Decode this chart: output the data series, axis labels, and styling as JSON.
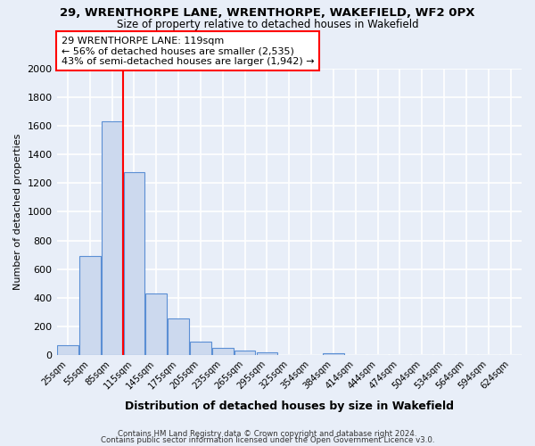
{
  "title": "29, WRENTHORPE LANE, WRENTHORPE, WAKEFIELD, WF2 0PX",
  "subtitle": "Size of property relative to detached houses in Wakefield",
  "xlabel": "Distribution of detached houses by size in Wakefield",
  "ylabel": "Number of detached properties",
  "bar_labels": [
    "25sqm",
    "55sqm",
    "85sqm",
    "115sqm",
    "145sqm",
    "175sqm",
    "205sqm",
    "235sqm",
    "265sqm",
    "295sqm",
    "325sqm",
    "354sqm",
    "384sqm",
    "414sqm",
    "444sqm",
    "474sqm",
    "504sqm",
    "534sqm",
    "564sqm",
    "594sqm",
    "624sqm"
  ],
  "bar_values": [
    65,
    690,
    1630,
    1280,
    430,
    255,
    90,
    50,
    30,
    20,
    0,
    0,
    15,
    0,
    0,
    0,
    0,
    0,
    0,
    0,
    0
  ],
  "bar_color": "#ccd9ee",
  "bar_edge_color": "#5b8fd4",
  "vline_color": "red",
  "annotation_title": "29 WRENTHORPE LANE: 119sqm",
  "annotation_line1": "← 56% of detached houses are smaller (2,535)",
  "annotation_line2": "43% of semi-detached houses are larger (1,942) →",
  "annotation_box_color": "white",
  "annotation_box_edge": "red",
  "ylim": [
    0,
    2000
  ],
  "yticks": [
    0,
    200,
    400,
    600,
    800,
    1000,
    1200,
    1400,
    1600,
    1800,
    2000
  ],
  "footer1": "Contains HM Land Registry data © Crown copyright and database right 2024.",
  "footer2": "Contains public sector information licensed under the Open Government Licence v3.0.",
  "bg_color": "#e8eef8",
  "grid_color": "white"
}
